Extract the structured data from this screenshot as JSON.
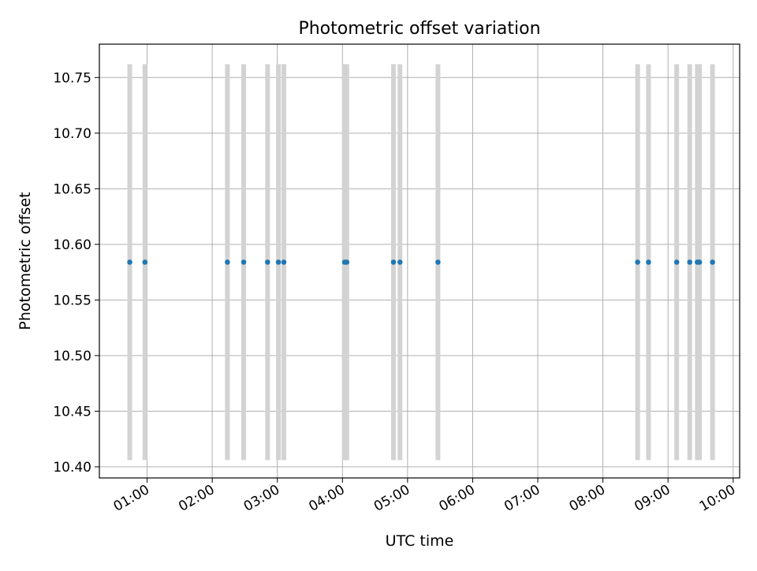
{
  "chart_data": {
    "type": "scatter",
    "title": "Photometric offset variation",
    "xlabel": "UTC time",
    "ylabel": "Photometric offset",
    "x_axis": {
      "type": "time",
      "range": [
        "00:16",
        "10:06"
      ],
      "ticks": [
        "01:00",
        "02:00",
        "03:00",
        "04:00",
        "05:00",
        "06:00",
        "07:00",
        "08:00",
        "09:00",
        "10:00"
      ]
    },
    "y_axis": {
      "range": [
        10.39,
        10.78
      ],
      "ticks": [
        "10.40",
        "10.45",
        "10.50",
        "10.55",
        "10.60",
        "10.65",
        "10.70",
        "10.75"
      ]
    },
    "grid": true,
    "series": [
      {
        "marker_color": "#1f77b4",
        "errorbar_color": "#d3d3d3",
        "points": [
          {
            "x": "00:44",
            "y": 10.584,
            "yerr": 0.178
          },
          {
            "x": "00:58",
            "y": 10.584,
            "yerr": 0.178
          },
          {
            "x": "02:14",
            "y": 10.584,
            "yerr": 0.178
          },
          {
            "x": "02:29",
            "y": 10.584,
            "yerr": 0.178
          },
          {
            "x": "02:51",
            "y": 10.584,
            "yerr": 0.178
          },
          {
            "x": "03:01",
            "y": 10.584,
            "yerr": 0.178
          },
          {
            "x": "03:06",
            "y": 10.584,
            "yerr": 0.178
          },
          {
            "x": "04:02",
            "y": 10.584,
            "yerr": 0.178
          },
          {
            "x": "04:04",
            "y": 10.584,
            "yerr": 0.178
          },
          {
            "x": "04:47",
            "y": 10.584,
            "yerr": 0.178
          },
          {
            "x": "04:53",
            "y": 10.584,
            "yerr": 0.178
          },
          {
            "x": "05:28",
            "y": 10.584,
            "yerr": 0.178
          },
          {
            "x": "08:32",
            "y": 10.584,
            "yerr": 0.178
          },
          {
            "x": "08:42",
            "y": 10.584,
            "yerr": 0.178
          },
          {
            "x": "09:08",
            "y": 10.584,
            "yerr": 0.178
          },
          {
            "x": "09:20",
            "y": 10.584,
            "yerr": 0.178
          },
          {
            "x": "09:27",
            "y": 10.584,
            "yerr": 0.178
          },
          {
            "x": "09:29",
            "y": 10.584,
            "yerr": 0.178
          },
          {
            "x": "09:41",
            "y": 10.584,
            "yerr": 0.178
          }
        ]
      }
    ]
  }
}
